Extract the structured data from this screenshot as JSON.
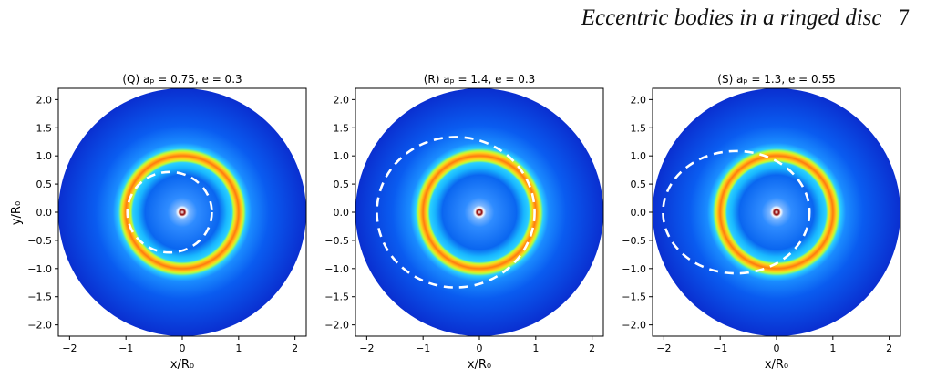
{
  "header": {
    "running_title": "Eccentric bodies in a ringed disc",
    "page_number": "7"
  },
  "figure": {
    "colors": {
      "disc_outer": "#0a2fd0",
      "disc_mid": "#0a5cf0",
      "ring_peak": "#ff7a10",
      "ring_inner": "#ffd21a",
      "ring_edge": "#2ad0ff",
      "orbit": "#ffffff",
      "center_dot": "#8b0000"
    },
    "x_axis_label": "x/R₀",
    "y_axis_label": "y/R₀",
    "panels": [
      {
        "id": "Q",
        "title": "(Q) aₚ = 0.75,  e = 0.3",
        "a_p": 0.75,
        "e": 0.3
      },
      {
        "id": "R",
        "title": "(R) aₚ = 1.4,  e = 0.3",
        "a_p": 1.4,
        "e": 0.3
      },
      {
        "id": "S",
        "title": "(S) aₚ = 1.3,  e = 0.55",
        "a_p": 1.3,
        "e": 0.55
      }
    ]
  },
  "chart_data": [
    {
      "type": "heatmap",
      "title": "(Q) aₚ = 0.75,  e = 0.3",
      "xlabel": "x/R₀",
      "ylabel": "y/R₀",
      "xlim": [
        -2.2,
        2.2
      ],
      "ylim": [
        -2.2,
        2.2
      ],
      "x_ticks": [
        "−2",
        "−1",
        "0",
        "1",
        "2"
      ],
      "y_ticks": [
        "2.0",
        "1.5",
        "1.0",
        "0.5",
        "0.0",
        "−0.5",
        "−1.0",
        "−1.5",
        "−2.0"
      ],
      "disc_radius": 2.2,
      "ring_radius": 1.0,
      "orbit": {
        "a_p": 0.75,
        "e": 0.3,
        "periapsis_direction": "+x"
      }
    },
    {
      "type": "heatmap",
      "title": "(R) aₚ = 1.4,  e = 0.3",
      "xlabel": "x/R₀",
      "ylabel": "",
      "xlim": [
        -2.2,
        2.2
      ],
      "ylim": [
        -2.2,
        2.2
      ],
      "x_ticks": [
        "−2",
        "−1",
        "0",
        "1",
        "2"
      ],
      "y_ticks": [
        "2.0",
        "1.5",
        "1.0",
        "0.5",
        "0.0",
        "−0.5",
        "−1.0",
        "−1.5",
        "−2.0"
      ],
      "disc_radius": 2.2,
      "ring_radius": 1.0,
      "orbit": {
        "a_p": 1.4,
        "e": 0.3,
        "periapsis_direction": "+x"
      }
    },
    {
      "type": "heatmap",
      "title": "(S) aₚ = 1.3,  e = 0.55",
      "xlabel": "x/R₀",
      "ylabel": "",
      "xlim": [
        -2.2,
        2.2
      ],
      "ylim": [
        -2.2,
        2.2
      ],
      "x_ticks": [
        "−2",
        "−1",
        "0",
        "1",
        "2"
      ],
      "y_ticks": [
        "2.0",
        "1.5",
        "1.0",
        "0.5",
        "0.0",
        "−0.5",
        "−1.0",
        "−1.5",
        "−2.0"
      ],
      "disc_radius": 2.2,
      "ring_radius": 1.0,
      "orbit": {
        "a_p": 1.3,
        "e": 0.55,
        "periapsis_direction": "+x"
      }
    }
  ]
}
